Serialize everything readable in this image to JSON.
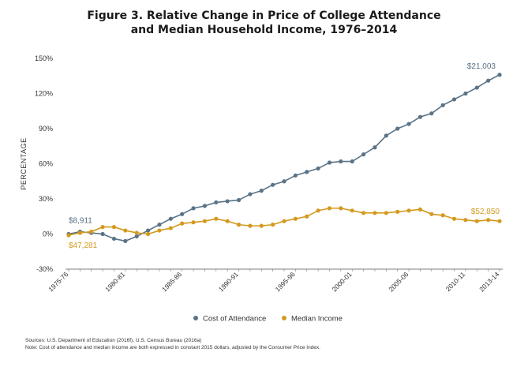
{
  "title_line1": "Figure 3. Relative Change in Price of College Attendance",
  "title_line2": "and Median Household Income, 1976–2014",
  "footnotes": {
    "sources": "Sources: U.S. Department of Education (2016f), U.S. Census Bureau (2016a)",
    "note": "Note: Cost of attendance and median income are both expressed in constant 2015 dollars, adjusted by the Consumer Price Index."
  },
  "chart_data": {
    "type": "line",
    "title": "Figure 3. Relative Change in Price of College Attendance and Median Household Income, 1976–2014",
    "xlabel": "",
    "ylabel": "PERCENTAGE",
    "ylim": [
      -30,
      150
    ],
    "yticks": [
      -30,
      0,
      30,
      60,
      90,
      120,
      150
    ],
    "ytick_labels": [
      "-30%",
      "0%",
      "30%",
      "60%",
      "90%",
      "120%",
      "150%"
    ],
    "grid": false,
    "legend_position": "bottom-center",
    "x": [
      "1975-76",
      "1976-77",
      "1977-78",
      "1978-79",
      "1979-80",
      "1980-81",
      "1981-82",
      "1982-83",
      "1983-84",
      "1984-85",
      "1985-86",
      "1986-87",
      "1987-88",
      "1988-89",
      "1989-90",
      "1990-91",
      "1991-92",
      "1992-93",
      "1993-94",
      "1994-95",
      "1995-96",
      "1996-97",
      "1997-98",
      "1998-99",
      "1999-00",
      "2000-01",
      "2001-02",
      "2002-03",
      "2003-04",
      "2004-05",
      "2005-06",
      "2006-07",
      "2007-08",
      "2008-09",
      "2009-10",
      "2010-11",
      "2011-12",
      "2012-13",
      "2013-14"
    ],
    "x_tick_labels": [
      "1975-76",
      "1980-81",
      "1985-86",
      "1990-91",
      "1995-96",
      "2000-01",
      "2005-06",
      "2010-11",
      "2013-14"
    ],
    "x_tick_indices": [
      0,
      5,
      10,
      15,
      20,
      25,
      30,
      35,
      38
    ],
    "series": [
      {
        "name": "Cost of Attendance",
        "color": "#5b7386",
        "values": [
          0,
          2,
          1,
          0,
          -4,
          -6,
          -2,
          3,
          8,
          13,
          17,
          22,
          24,
          27,
          28,
          29,
          34,
          37,
          42,
          45,
          50,
          53,
          56,
          61,
          62,
          62,
          68,
          74,
          84,
          90,
          94,
          100,
          103,
          110,
          115,
          120,
          125,
          131,
          136
        ],
        "start_label": "$8,911",
        "end_label": "$21,003"
      },
      {
        "name": "Median Income",
        "color": "#d49a1e",
        "values": [
          -1,
          1,
          2,
          6,
          6,
          3,
          1,
          0,
          3,
          5,
          9,
          10,
          11,
          13,
          11,
          8,
          7,
          7,
          8,
          11,
          13,
          15,
          20,
          22,
          22,
          20,
          18,
          18,
          18,
          19,
          20,
          21,
          17,
          16,
          13,
          12,
          11,
          12,
          11
        ],
        "start_label": "$47,281",
        "end_label": "$52,850"
      }
    ]
  }
}
